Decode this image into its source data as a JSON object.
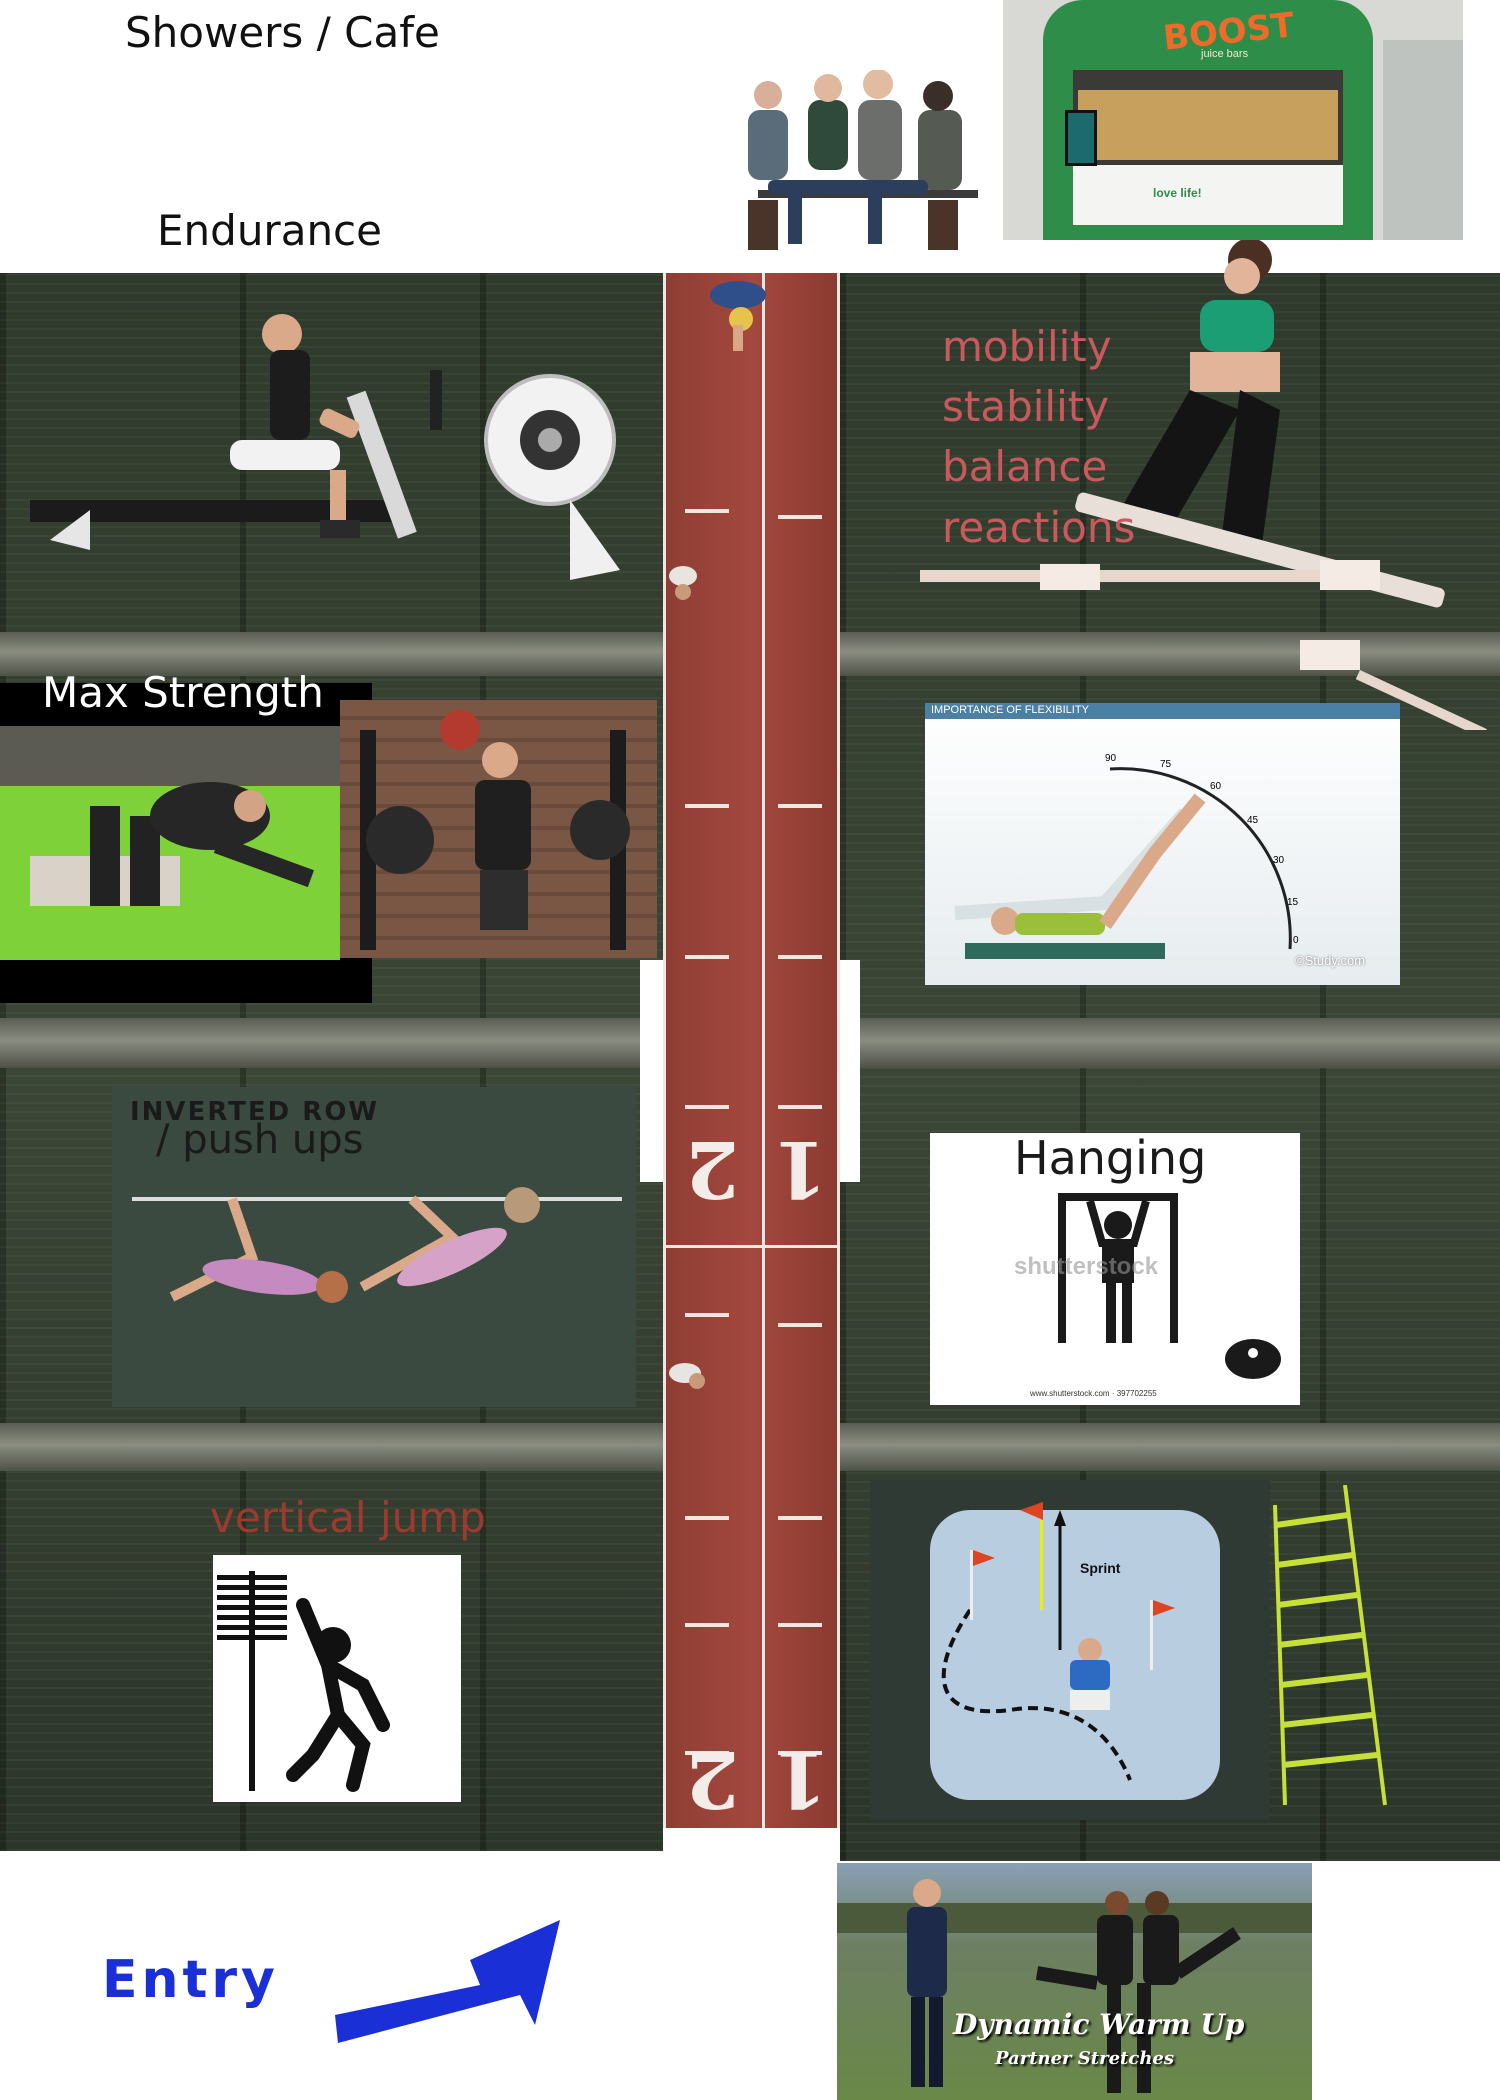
{
  "header": {
    "showers_label": "Showers / Cafe",
    "endurance_label": "Endurance"
  },
  "cafe_sign": {
    "brand": "BOOST",
    "sub": "juice bars",
    "counter_text": "love life!"
  },
  "zones": {
    "max_strength": "Max Strength",
    "mobility_lines": [
      "mobility",
      "stability",
      "balance",
      "reactions"
    ],
    "flexibility": {
      "title": "IMPORTANCE OF FLEXIBILITY",
      "angles": [
        "90",
        "75",
        "60",
        "45",
        "30",
        "15",
        "0"
      ],
      "credit": "©Study.com"
    },
    "inverted_row": {
      "line1": "INVERTED ROW",
      "line2": "/ push ups"
    },
    "hanging": {
      "title": "Hanging",
      "watermark": "shutterstock",
      "footer": "www.shutterstock.com · 397702255"
    },
    "vertical_jump": "vertical jump",
    "agility": {
      "sprint_label": "Sprint"
    },
    "warmup": {
      "title": "Dynamic Warm Up",
      "subtitle": "Partner Stretches"
    }
  },
  "track": {
    "lane_left": "2",
    "lane_right": "1"
  },
  "entry_label": "Entry",
  "colors": {
    "track": "#a4483e",
    "field": "#3b4636",
    "pink_text": "#c9595c",
    "red_text": "#c0392b",
    "entry_blue": "#1a2fd6",
    "ladder": "#c6e03a"
  }
}
